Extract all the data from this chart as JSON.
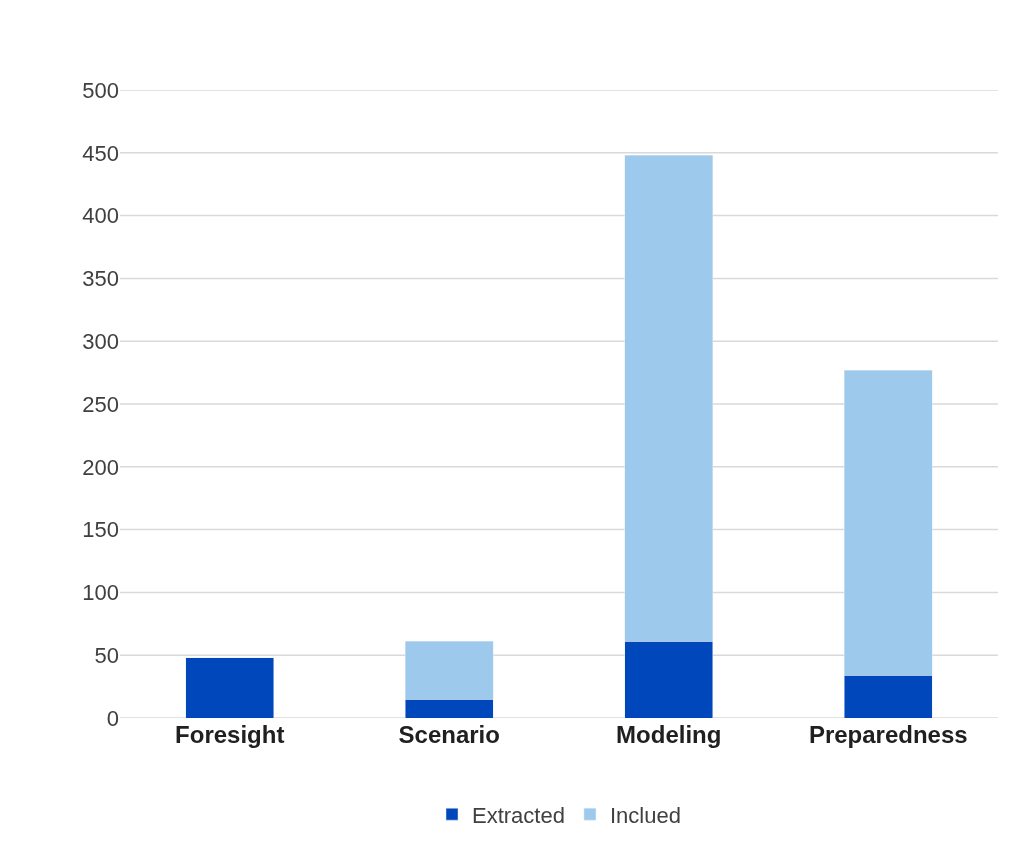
{
  "chart_data": {
    "type": "bar",
    "stacked": true,
    "categories": [
      "Foresight",
      "Scenario",
      "Modeling",
      "Preparedness"
    ],
    "series": [
      {
        "name": "Extracted",
        "color": "#0047bb",
        "values": [
          48,
          15,
          61,
          34
        ]
      },
      {
        "name": "Inclued",
        "color": "#9dc9ec",
        "values": [
          null,
          46,
          387,
          243
        ]
      }
    ],
    "ylim": [
      0,
      500
    ],
    "yticks": [
      0,
      50,
      100,
      150,
      200,
      250,
      300,
      350,
      400,
      450,
      500
    ],
    "grid": "y",
    "legend": "bottom"
  }
}
